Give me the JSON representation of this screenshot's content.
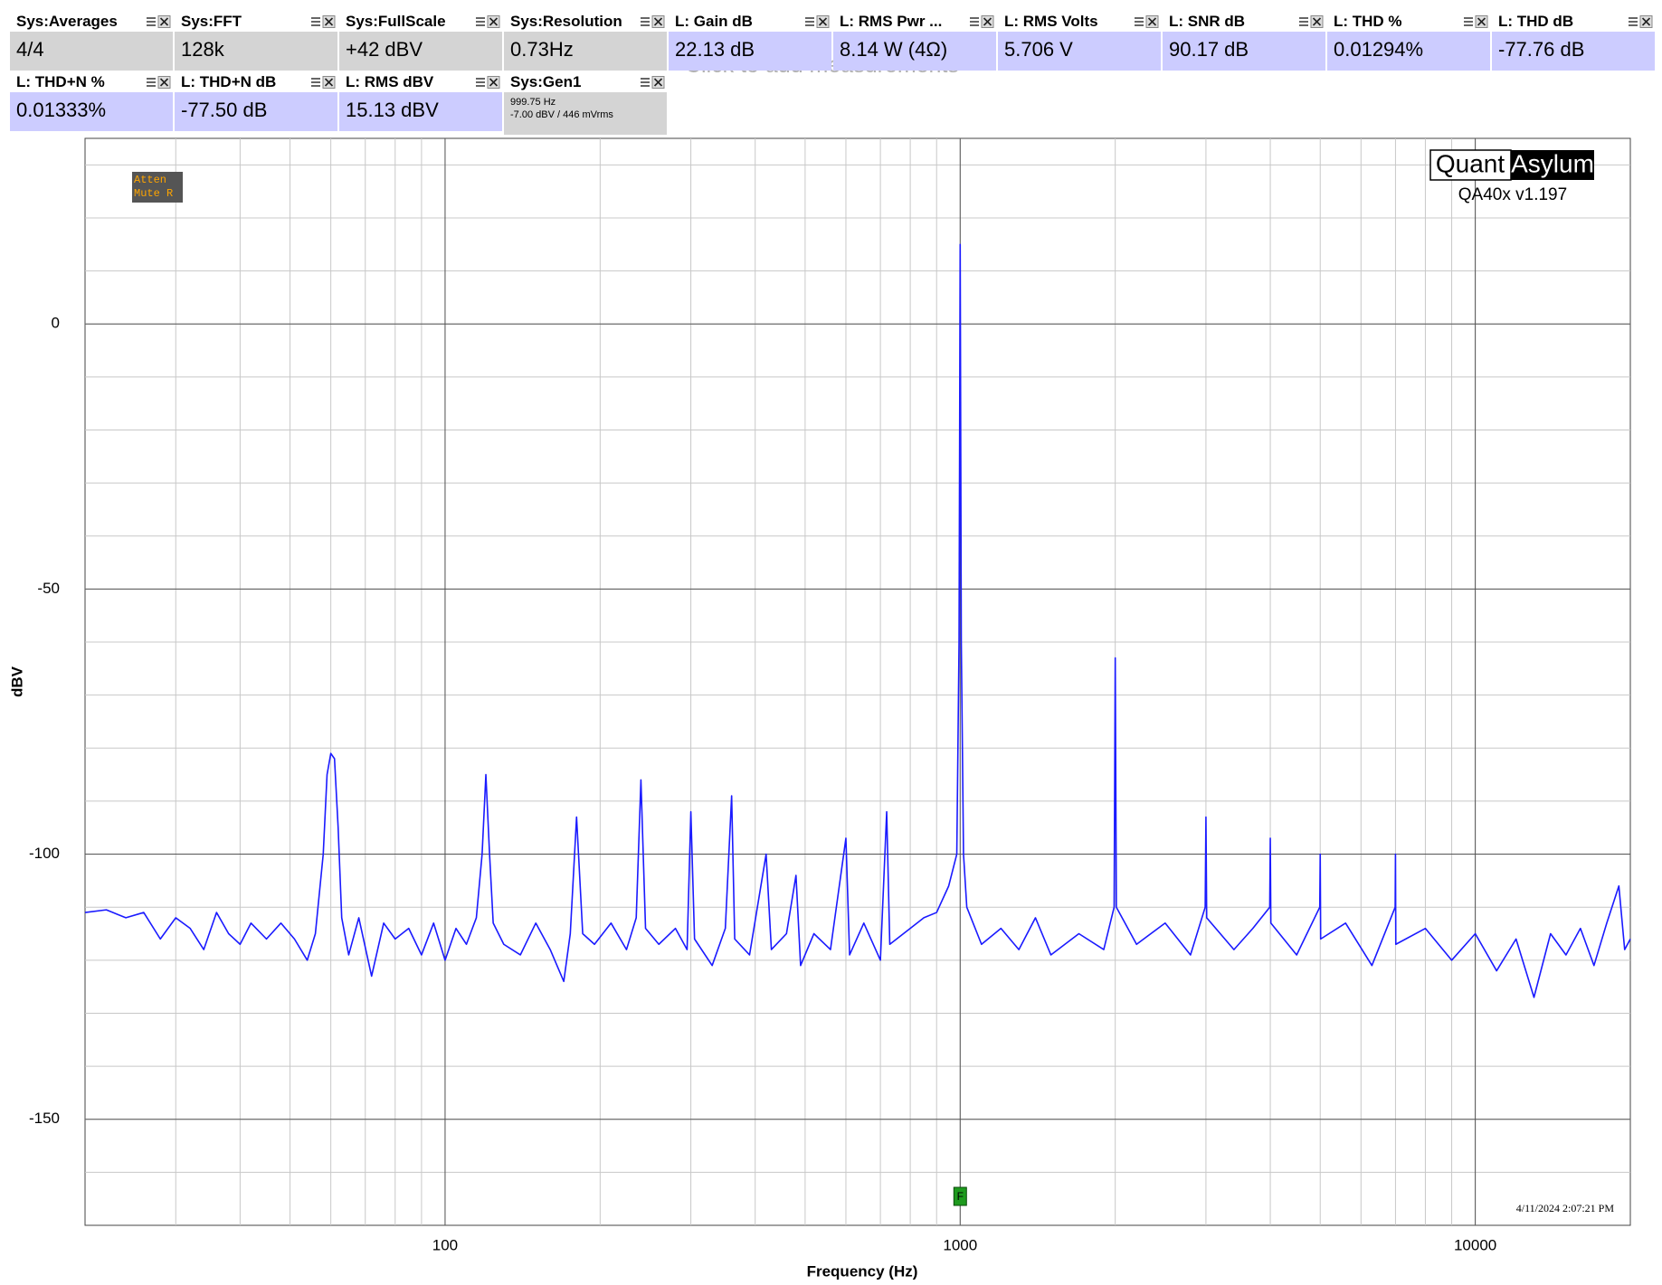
{
  "tiles": [
    [
      {
        "label": "Sys:Averages",
        "value": "4/4",
        "color": "#d4d4d4"
      },
      {
        "label": "Sys:FFT",
        "value": "128k",
        "color": "#d4d4d4"
      },
      {
        "label": "Sys:FullScale",
        "value": "+42 dBV",
        "color": "#d4d4d4"
      },
      {
        "label": "Sys:Resolution",
        "value": "0.73Hz",
        "color": "#d4d4d4"
      },
      {
        "label": "L: Gain dB",
        "value": "22.13 dB",
        "color": "#ccccff"
      },
      {
        "label": "L: RMS Pwr ...",
        "value": "8.14 W (4Ω)",
        "color": "#ccccff"
      },
      {
        "label": "L: RMS Volts",
        "value": "5.706 V",
        "color": "#ccccff"
      },
      {
        "label": "L: SNR dB",
        "value": "90.17 dB",
        "color": "#ccccff"
      },
      {
        "label": "L: THD %",
        "value": "0.01294%",
        "color": "#ccccff"
      },
      {
        "label": "L: THD dB",
        "value": "-77.76 dB",
        "color": "#ccccff"
      }
    ],
    [
      {
        "label": "L: THD+N %",
        "value": "0.01333%",
        "color": "#ccccff"
      },
      {
        "label": "L: THD+N dB",
        "value": "-77.50 dB",
        "color": "#ccccff"
      },
      {
        "label": "L: RMS dBV",
        "value": "15.13 dBV",
        "color": "#ccccff"
      },
      {
        "label": "Sys:Gen1",
        "lines": [
          "999.75 Hz",
          "-7.00 dBV  / 446 mVrms"
        ],
        "color": "#d4d4d4"
      }
    ]
  ],
  "background_text": "Click to add measurements",
  "chart_data": {
    "type": "line",
    "xlabel": "Frequency (Hz)",
    "ylabel": "dBV",
    "xscale": "log",
    "xlim": [
      20,
      20000
    ],
    "xticks": [
      100,
      1000,
      10000
    ],
    "ylim": [
      -170,
      35
    ],
    "yticks": [
      -150,
      -100,
      -50,
      0
    ],
    "grid": true,
    "x": [
      20,
      22,
      24,
      26,
      28,
      30,
      32,
      34,
      36,
      38,
      40,
      42,
      45,
      48,
      51,
      54,
      56,
      58,
      59,
      60,
      61,
      62,
      63,
      65,
      68,
      72,
      76,
      80,
      85,
      90,
      95,
      100,
      105,
      110,
      115,
      118,
      120,
      122,
      124,
      130,
      140,
      150,
      160,
      170,
      175,
      180,
      185,
      195,
      210,
      225,
      235,
      240,
      245,
      260,
      280,
      295,
      300,
      305,
      330,
      350,
      360,
      365,
      390,
      420,
      430,
      460,
      480,
      490,
      520,
      560,
      600,
      610,
      650,
      700,
      720,
      730,
      800,
      850,
      900,
      950,
      985,
      995,
      1000,
      1005,
      1015,
      1030,
      1100,
      1200,
      1300,
      1400,
      1500,
      1700,
      1900,
      1990,
      2000,
      2010,
      2200,
      2500,
      2800,
      2990,
      3000,
      3010,
      3400,
      3700,
      3990,
      4000,
      4010,
      4500,
      4990,
      5000,
      5010,
      5600,
      6300,
      6990,
      7000,
      7010,
      8000,
      9000,
      10000,
      11000,
      12000,
      13000,
      14000,
      15000,
      16000,
      17000,
      18000,
      19000,
      19500,
      20000
    ],
    "series": [
      {
        "color": "#1a1aff",
        "values": [
          -111,
          -110.5,
          -112,
          -111,
          -116,
          -112,
          -114,
          -118,
          -111,
          -115,
          -117,
          -113,
          -116,
          -113,
          -116,
          -120,
          -115,
          -100,
          -85,
          -81,
          -82,
          -95,
          -112,
          -119,
          -112,
          -123,
          -113,
          -116,
          -114,
          -119,
          -113,
          -120,
          -114,
          -117,
          -112,
          -100,
          -85,
          -100,
          -113,
          -117,
          -119,
          -113,
          -118,
          -124,
          -115,
          -93,
          -115,
          -117,
          -113,
          -118,
          -112,
          -86,
          -114,
          -117,
          -114,
          -118,
          -92,
          -116,
          -121,
          -114,
          -89,
          -116,
          -119,
          -100,
          -118,
          -115,
          -104,
          -121,
          -115,
          -118,
          -97,
          -119,
          -113,
          -120,
          -92,
          -117,
          -114,
          -112,
          -111,
          -106,
          -100,
          -60,
          15,
          -60,
          -100,
          -110,
          -117,
          -114,
          -118,
          -112,
          -119,
          -115,
          -118,
          -110,
          -63,
          -110,
          -117,
          -113,
          -119,
          -110,
          -93,
          -112,
          -118,
          -114,
          -110,
          -97,
          -113,
          -119,
          -110,
          -100,
          -116,
          -113,
          -121,
          -110,
          -100,
          -117,
          -114,
          -120,
          -115,
          -122,
          -116,
          -127,
          -115,
          -119,
          -114,
          -121,
          -113,
          -106,
          -118,
          -116
        ]
      }
    ],
    "annotations": {
      "status": [
        "Atten",
        "Mute R"
      ],
      "logo": [
        "Quant",
        "Asylum"
      ],
      "version": "QA40x v1.197",
      "timestamp": "4/11/2024 2:07:21 PM",
      "marker": {
        "label": "F",
        "x": 1000
      }
    }
  }
}
